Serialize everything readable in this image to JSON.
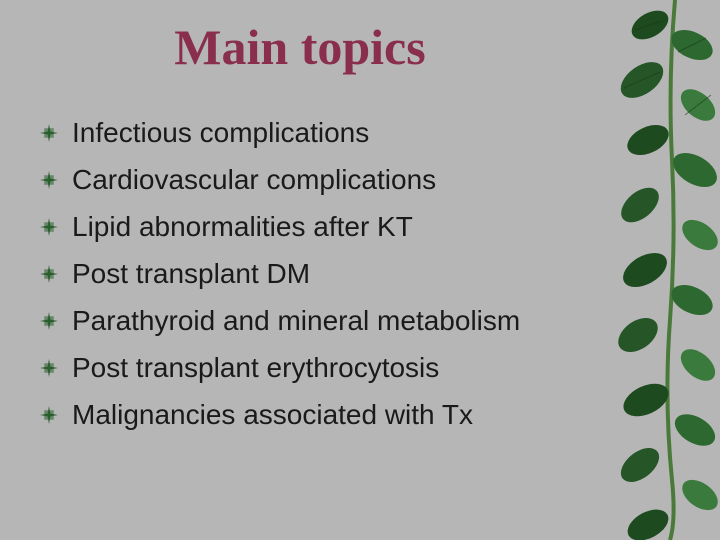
{
  "title": "Main topics",
  "title_color": "#8a2e4e",
  "title_fontsize": 50,
  "background_color": "#b6b6b6",
  "bullet_color": "#295e2e",
  "item_fontsize": 28,
  "item_color": "#1a1a1a",
  "items": [
    "Infectious complications",
    "Cardiovascular complications",
    "Lipid abnormalities after KT",
    "Post transplant DM",
    "Parathyroid and mineral metabolism",
    "Post transplant erythrocytosis",
    "Malignancies associated with Tx"
  ],
  "vine": {
    "stem_color": "#4a7a3a",
    "leaf_colors": [
      "#1e4a20",
      "#2d6830",
      "#3a7a3c",
      "#265528"
    ]
  }
}
